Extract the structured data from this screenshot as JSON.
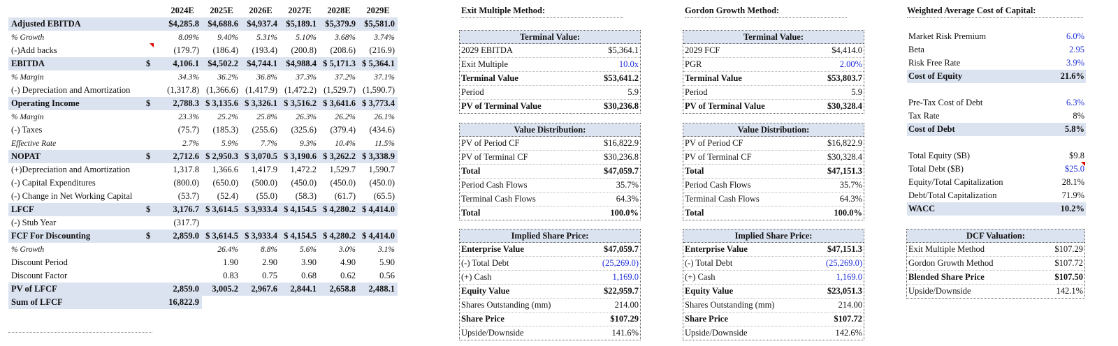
{
  "years": [
    "2024E",
    "2025E",
    "2026E",
    "2027E",
    "2028E",
    "2029E"
  ],
  "dcf_rows": [
    {
      "label": "Adjusted EBITDA",
      "style": "hl",
      "cur": "",
      "vals": [
        "$4,285.8",
        "$4,688.6",
        "$4,937.4",
        "$5,189.1",
        "$5,379.9",
        "$5,581.0"
      ]
    },
    {
      "label": "% Growth",
      "style": "it",
      "cur": "",
      "vals": [
        "8.09%",
        "9.40%",
        "5.31%",
        "5.10%",
        "3.68%",
        "3.74%"
      ]
    },
    {
      "label": "(-)Add backs",
      "style": "",
      "cur": "",
      "vals": [
        "(179.7)",
        "(186.4)",
        "(193.4)",
        "(200.8)",
        "(208.6)",
        "(216.9)"
      ]
    },
    {
      "label": "EBITDA",
      "style": "hl",
      "cur": "$",
      "vals": [
        "4,106.1",
        "$4,502.2",
        "$4,744.1",
        "$4,988.4",
        "$ 5,171.3",
        "$ 5,364.1"
      ]
    },
    {
      "label": "% Margin",
      "style": "it",
      "cur": "",
      "vals": [
        "34.3%",
        "36.2%",
        "36.8%",
        "37.3%",
        "37.2%",
        "37.1%"
      ]
    },
    {
      "label": "(-) Depreciation and Amortization",
      "style": "",
      "cur": "",
      "vals": [
        "(1,317.8)",
        "(1,366.6)",
        "(1,417.9)",
        "(1,472.2)",
        "(1,529.7)",
        "(1,590.7)"
      ]
    },
    {
      "label": "Operating Income",
      "style": "hl",
      "cur": "$",
      "vals": [
        "2,788.3",
        "$ 3,135.6",
        "$ 3,326.1",
        "$ 3,516.2",
        "$ 3,641.6",
        "$ 3,773.4"
      ]
    },
    {
      "label": "% Margin",
      "style": "it",
      "cur": "",
      "vals": [
        "23.3%",
        "25.2%",
        "25.8%",
        "26.3%",
        "26.2%",
        "26.1%"
      ]
    },
    {
      "label": "(-) Taxes",
      "style": "",
      "cur": "",
      "vals": [
        "(75.7)",
        "(185.3)",
        "(255.6)",
        "(325.6)",
        "(379.4)",
        "(434.6)"
      ]
    },
    {
      "label": "Effective Rate",
      "style": "it",
      "cur": "",
      "vals": [
        "2.7%",
        "5.9%",
        "7.7%",
        "9.3%",
        "10.4%",
        "11.5%"
      ]
    },
    {
      "label": "NOPAT",
      "style": "hl",
      "cur": "$",
      "vals": [
        "2,712.6",
        "$ 2,950.3",
        "$ 3,070.5",
        "$ 3,190.6",
        "$ 3,262.2",
        "$ 3,338.9"
      ]
    },
    {
      "label": "(+)Depreciation and Amortization",
      "style": "",
      "cur": "",
      "vals": [
        "1,317.8",
        "1,366.6",
        "1,417.9",
        "1,472.2",
        "1,529.7",
        "1,590.7"
      ]
    },
    {
      "label": "(-) Capital Expenditures",
      "style": "",
      "cur": "",
      "vals": [
        "(800.0)",
        "(650.0)",
        "(500.0)",
        "(450.0)",
        "(450.0)",
        "(450.0)"
      ]
    },
    {
      "label": "(-) Change in Net Working Capital",
      "style": "",
      "cur": "",
      "vals": [
        "(53.7)",
        "(52.4)",
        "(55.0)",
        "(58.3)",
        "(61.7)",
        "(65.5)"
      ]
    },
    {
      "label": "LFCF",
      "style": "hl",
      "cur": "$",
      "vals": [
        "3,176.7",
        "$ 3,614.5",
        "$ 3,933.4",
        "$ 4,154.5",
        "$ 4,280.2",
        "$ 4,414.0"
      ]
    },
    {
      "label": "(-) Stub Year",
      "style": "",
      "cur": "",
      "vals": [
        "(317.7)",
        "",
        "",
        "",
        "",
        ""
      ]
    },
    {
      "label": "FCF For Discounting",
      "style": "hl",
      "cur": "$",
      "vals": [
        "2,859.0",
        "$ 3,614.5",
        "$ 3,933.4",
        "$ 4,154.5",
        "$ 4,280.2",
        "$ 4,414.0"
      ]
    },
    {
      "label": "% Growth",
      "style": "it",
      "cur": "",
      "vals": [
        "",
        "26.4%",
        "8.8%",
        "5.6%",
        "3.0%",
        "3.1%"
      ]
    },
    {
      "label": "Discount Period",
      "style": "",
      "cur": "",
      "vals": [
        "",
        "1.90",
        "2.90",
        "3.90",
        "4.90",
        "5.90"
      ]
    },
    {
      "label": "Discount Factor",
      "style": "",
      "cur": "",
      "vals": [
        "",
        "0.83",
        "0.75",
        "0.68",
        "0.62",
        "0.56"
      ]
    },
    {
      "label": "PV of LFCF",
      "style": "hl",
      "cur": "",
      "vals": [
        "2,859.0",
        "3,005.2",
        "2,967.6",
        "2,844.1",
        "2,658.8",
        "2,488.1"
      ]
    },
    {
      "label": "Sum of LFCF",
      "style": "hlpart",
      "cur": "",
      "vals": [
        "16,822.9",
        "",
        "",
        "",
        "",
        ""
      ]
    }
  ],
  "exit": {
    "header": "Exit Multiple Method:",
    "tv": {
      "title": "Terminal Value:",
      "rows": [
        {
          "l": "2029 EBITDA",
          "v": "$5,364.1",
          "b": false,
          "blue": false
        },
        {
          "l": "Exit Multiple",
          "v": "10.0x",
          "b": false,
          "blue": true
        },
        {
          "l": "Terminal Value",
          "v": "$53,641.2",
          "b": true,
          "blue": false
        },
        {
          "l": "Period",
          "v": "5.9",
          "b": false,
          "blue": false
        },
        {
          "l": "PV of Terminal Value",
          "v": "$30,236.8",
          "b": true,
          "blue": false
        }
      ]
    },
    "vd": {
      "title": "Value Distribution:",
      "rows": [
        {
          "l": "PV of Period CF",
          "v": "$16,822.9",
          "b": false,
          "blue": false
        },
        {
          "l": "PV of Terminal CF",
          "v": "$30,236.8",
          "b": false,
          "blue": false
        },
        {
          "l": "Total",
          "v": "$47,059.7",
          "b": true,
          "blue": false
        },
        {
          "l": "Period Cash Flows",
          "v": "35.7%",
          "b": false,
          "blue": false
        },
        {
          "l": "Terminal Cash Flows",
          "v": "64.3%",
          "b": false,
          "blue": false
        },
        {
          "l": "Total",
          "v": "100.0%",
          "b": true,
          "blue": false
        }
      ]
    },
    "sp": {
      "title": "Implied Share Price:",
      "rows": [
        {
          "l": "Enterprise Value",
          "v": "$47,059.7",
          "b": true,
          "blue": false
        },
        {
          "l": "(-) Total Debt",
          "v": "(25,269.0)",
          "b": false,
          "blue": true
        },
        {
          "l": "(+) Cash",
          "v": "1,169.0",
          "b": false,
          "blue": true
        },
        {
          "l": "Equity Value",
          "v": "$22,959.7",
          "b": true,
          "blue": false
        },
        {
          "l": "Shares Outstanding (mm)",
          "v": "214.00",
          "b": false,
          "blue": false
        },
        {
          "l": "Share Price",
          "v": "$107.29",
          "b": true,
          "blue": false
        },
        {
          "l": "Upside/Downside",
          "v": "141.6%",
          "b": false,
          "blue": false
        }
      ]
    }
  },
  "gordon": {
    "header": "Gordon Growth Method:",
    "tv": {
      "title": "Terminal Value:",
      "rows": [
        {
          "l": "2029 FCF",
          "v": "$4,414.0",
          "b": false,
          "blue": false
        },
        {
          "l": "PGR",
          "v": "2.00%",
          "b": false,
          "blue": true
        },
        {
          "l": "Terminal Value",
          "v": "$53,803.7",
          "b": true,
          "blue": false
        },
        {
          "l": "Period",
          "v": "5.9",
          "b": false,
          "blue": false
        },
        {
          "l": "PV of Terminal Value",
          "v": "$30,328.4",
          "b": true,
          "blue": false
        }
      ]
    },
    "vd": {
      "title": "Value Distribution:",
      "rows": [
        {
          "l": "PV of Period CF",
          "v": "$16,822.9",
          "b": false,
          "blue": false
        },
        {
          "l": "PV of Terminal CF",
          "v": "$30,328.4",
          "b": false,
          "blue": false
        },
        {
          "l": "Total",
          "v": "$47,151.3",
          "b": true,
          "blue": false
        },
        {
          "l": "Period Cash Flows",
          "v": "35.7%",
          "b": false,
          "blue": false
        },
        {
          "l": "Terminal Cash Flows",
          "v": "64.3%",
          "b": false,
          "blue": false
        },
        {
          "l": "Total",
          "v": "100.0%",
          "b": true,
          "blue": false
        }
      ]
    },
    "sp": {
      "title": "Implied Share Price:",
      "rows": [
        {
          "l": "Enterprise Value",
          "v": "$47,151.3",
          "b": true,
          "blue": false
        },
        {
          "l": "(-) Total Debt",
          "v": "(25,269.0)",
          "b": false,
          "blue": true
        },
        {
          "l": "(+) Cash",
          "v": "1,169.0",
          "b": false,
          "blue": true
        },
        {
          "l": "Equity Value",
          "v": "$23,051.3",
          "b": true,
          "blue": false
        },
        {
          "l": "Shares Outstanding (mm)",
          "v": "214.00",
          "b": false,
          "blue": false
        },
        {
          "l": "Share Price",
          "v": "$107.72",
          "b": true,
          "blue": false
        },
        {
          "l": "Upside/Downside",
          "v": "142.6%",
          "b": false,
          "blue": false
        }
      ]
    }
  },
  "wacc": {
    "header": "Weighted Average Cost of Capital:",
    "rows": [
      {
        "l": "Market Risk Premium",
        "v": "6.0%",
        "hl": false,
        "blue": true
      },
      {
        "l": "Beta",
        "v": "2.95",
        "hl": false,
        "blue": true
      },
      {
        "l": "Risk Free Rate",
        "v": "3.9%",
        "hl": false,
        "blue": true
      },
      {
        "l": "Cost of Equity",
        "v": "21.6%",
        "hl": true,
        "blue": false
      },
      {
        "l": "",
        "v": "",
        "hl": false,
        "blue": false
      },
      {
        "l": "Pre-Tax Cost of Debt",
        "v": "6.3%",
        "hl": false,
        "blue": true
      },
      {
        "l": "Tax Rate",
        "v": "8%",
        "hl": false,
        "blue": false
      },
      {
        "l": "Cost of Debt",
        "v": "5.8%",
        "hl": true,
        "blue": false
      },
      {
        "l": "",
        "v": "",
        "hl": false,
        "blue": false
      },
      {
        "l": "Total Equity ($B)",
        "v": "$9.8",
        "hl": false,
        "blue": false
      },
      {
        "l": "Total Debt ($B)",
        "v": "$25.0",
        "hl": false,
        "blue": true
      },
      {
        "l": "Equity/Total Capitalization",
        "v": "28.1%",
        "hl": false,
        "blue": false
      },
      {
        "l": "Debt/Total Capitalization",
        "v": "71.9%",
        "hl": false,
        "blue": false
      },
      {
        "l": "WACC",
        "v": "10.2%",
        "hl": true,
        "blue": false
      }
    ]
  },
  "dcfval": {
    "title": "DCF Valuation:",
    "rows": [
      {
        "l": "Exit Multiple Method",
        "v": "$107.29",
        "b": false,
        "blue": false
      },
      {
        "l": "Gordon Growth Method",
        "v": "$107.72",
        "b": false,
        "blue": false
      },
      {
        "l": "Blended Share Price",
        "v": "$107.50",
        "b": true,
        "blue": false
      },
      {
        "l": "Upside/Downside",
        "v": "142.1%",
        "b": false,
        "blue": false
      }
    ]
  }
}
